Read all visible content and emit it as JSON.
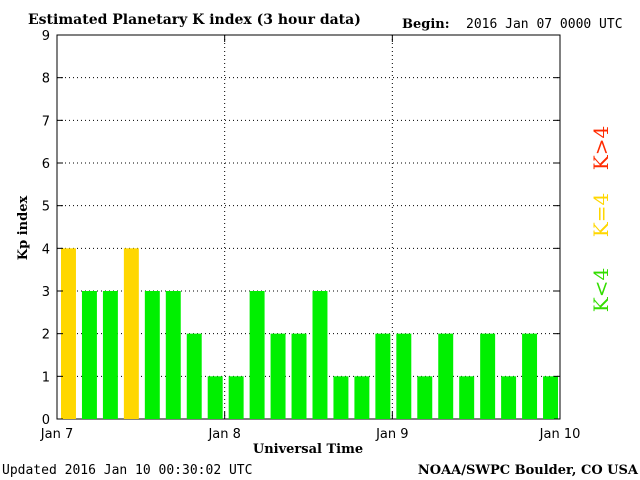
{
  "chart_data": {
    "type": "bar",
    "title": "Estimated Planetary K index (3 hour data)",
    "begin_label": "Begin:",
    "begin_value": "2016 Jan 07 0000 UTC",
    "ylabel": "Kp index",
    "xlabel": "Universal Time",
    "ylim": [
      0,
      9
    ],
    "yticks": [
      0,
      1,
      2,
      3,
      4,
      5,
      6,
      7,
      8,
      9
    ],
    "xticks": [
      {
        "label": "Jan 7",
        "bin": 0
      },
      {
        "label": "Jan 8",
        "bin": 8
      },
      {
        "label": "Jan 9",
        "bin": 16
      },
      {
        "label": "Jan 10",
        "bin": 24
      }
    ],
    "grid": true,
    "values": [
      4,
      3,
      3,
      4,
      3,
      3,
      2,
      1,
      1,
      3,
      2,
      2,
      3,
      1,
      1,
      2,
      2,
      1,
      2,
      1,
      2,
      1,
      2,
      1
    ],
    "colors": {
      "below": "#00f000",
      "equal": "#ffd700",
      "above": "#ff2a00"
    },
    "legend": [
      {
        "label": "K<4",
        "color": "#33dd00"
      },
      {
        "label": "K=4",
        "color": "#ffd700"
      },
      {
        "label": "K>4",
        "color": "#ff2a00"
      }
    ],
    "footer_left": "Updated 2016 Jan 10 00:30:02 UTC",
    "footer_right": "NOAA/SWPC Boulder, CO USA"
  }
}
